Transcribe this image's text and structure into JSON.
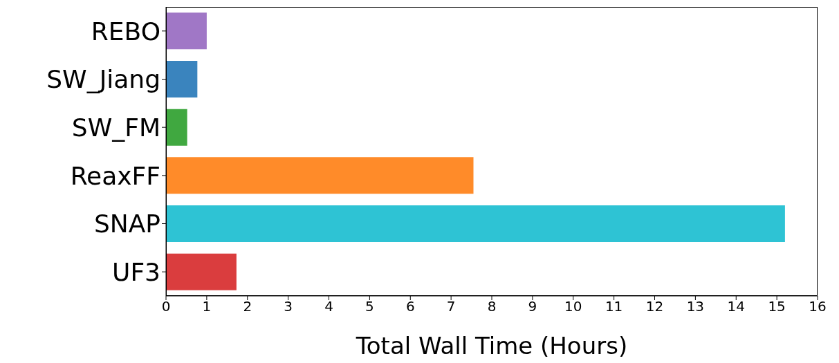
{
  "chart_data": {
    "type": "bar",
    "orientation": "horizontal",
    "xlabel": "Total Wall Time (Hours)",
    "categories": [
      "REBO",
      "SW_Jiang",
      "SW_FM",
      "ReaxFF",
      "SNAP",
      "UF3"
    ],
    "values": [
      1.0,
      0.77,
      0.52,
      7.55,
      15.2,
      1.73
    ],
    "colors": [
      "#a077c6",
      "#3a84be",
      "#40a840",
      "#ff8b29",
      "#2ec3d4",
      "#da3d3e"
    ],
    "xlim": [
      0,
      16
    ],
    "xticks": [
      0,
      1,
      2,
      3,
      4,
      5,
      6,
      7,
      8,
      9,
      10,
      11,
      12,
      13,
      14,
      15,
      16
    ],
    "grid": false,
    "legend": false
  }
}
